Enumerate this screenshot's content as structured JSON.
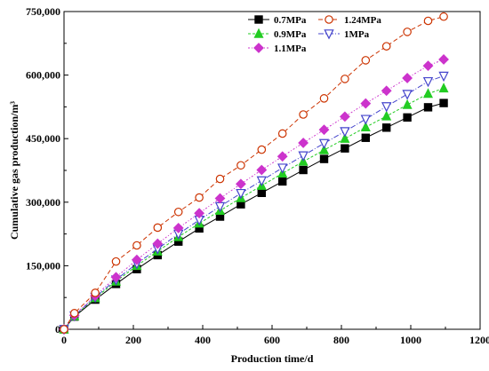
{
  "chart_data": {
    "type": "line",
    "title": "",
    "xlabel": "Production time/d",
    "ylabel": "Cumulative gas production/m³",
    "xlim": [
      0,
      1200
    ],
    "ylim": [
      0,
      750000
    ],
    "xticks": [
      0,
      200,
      400,
      600,
      800,
      1000,
      1200
    ],
    "yticks": [
      0,
      150000,
      300000,
      450000,
      600000,
      750000
    ],
    "xtick_labels": [
      "0",
      "200",
      "400",
      "600",
      "800",
      "1000",
      "1200"
    ],
    "ytick_labels": [
      "0",
      "150,000",
      "300,000",
      "450,000",
      "600,000",
      "750,000"
    ],
    "grid": false,
    "legend_position": "top-left",
    "x": [
      0,
      30,
      90,
      150,
      210,
      270,
      330,
      390,
      450,
      510,
      570,
      630,
      690,
      750,
      810,
      870,
      930,
      990,
      1050,
      1095
    ],
    "series": [
      {
        "name": "0.7MPa",
        "color": "#000000",
        "marker": "square",
        "values": [
          0,
          30000,
          70000,
          107000,
          142000,
          175000,
          207000,
          238000,
          266000,
          295000,
          322000,
          349000,
          376000,
          402000,
          427000,
          452000,
          476000,
          500000,
          524000,
          534000
        ]
      },
      {
        "name": "0.9MPa",
        "color": "#22cc22",
        "marker": "triangle-up",
        "values": [
          0,
          31000,
          74000,
          113000,
          150000,
          184000,
          218000,
          250000,
          280000,
          310000,
          339000,
          368000,
          396000,
          423000,
          450000,
          477000,
          503000,
          530000,
          556000,
          569000
        ]
      },
      {
        "name": "1MPa",
        "color": "#4444cc",
        "marker": "triangle-down",
        "values": [
          0,
          32000,
          76000,
          117000,
          155000,
          190000,
          225000,
          258000,
          290000,
          321000,
          351000,
          381000,
          410000,
          439000,
          467000,
          496000,
          526000,
          555000,
          585000,
          598000
        ]
      },
      {
        "name": "1.1MPa",
        "color": "#cc33cc",
        "marker": "diamond",
        "values": [
          0,
          33000,
          79000,
          123000,
          164000,
          202000,
          239000,
          274000,
          309000,
          343000,
          376000,
          408000,
          440000,
          471000,
          502000,
          533000,
          563000,
          593000,
          622000,
          637000
        ]
      },
      {
        "name": "1.24MPa",
        "color": "#cc3300",
        "marker": "circle-open",
        "values": [
          0,
          38000,
          86000,
          160000,
          198000,
          240000,
          277000,
          311000,
          355000,
          387000,
          424000,
          462000,
          507000,
          545000,
          591000,
          635000,
          668000,
          702000,
          728000,
          738000
        ]
      }
    ]
  }
}
